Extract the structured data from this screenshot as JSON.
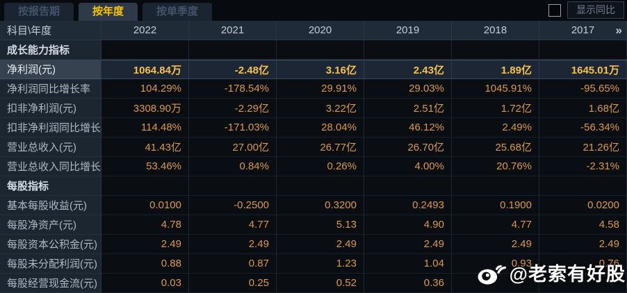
{
  "tabs": [
    {
      "label": "按报告期",
      "active": false
    },
    {
      "label": "按年度",
      "active": true
    },
    {
      "label": "按单季度",
      "active": false
    }
  ],
  "controls": {
    "show_yoy_label": "显示同比",
    "checkbox_checked": false
  },
  "table": {
    "corner_header": "科目\\年度",
    "year_columns": [
      "2022",
      "2021",
      "2020",
      "2019",
      "2018",
      "2017"
    ],
    "more_icon": "»",
    "rows": [
      {
        "type": "section",
        "label": "成长能力指标",
        "values": [
          "",
          "",
          "",
          "",
          "",
          ""
        ]
      },
      {
        "type": "data",
        "highlight": true,
        "label": "净利润(元)",
        "values": [
          "1064.84万",
          "-2.48亿",
          "3.16亿",
          "2.43亿",
          "1.89亿",
          "1645.01万"
        ]
      },
      {
        "type": "data",
        "label": "净利润同比增长率",
        "values": [
          "104.29%",
          "-178.54%",
          "29.91%",
          "29.03%",
          "1045.91%",
          "-95.65%"
        ]
      },
      {
        "type": "data",
        "label": "扣非净利润(元)",
        "values": [
          "3308.90万",
          "-2.29亿",
          "3.22亿",
          "2.51亿",
          "1.72亿",
          "1.68亿"
        ]
      },
      {
        "type": "data",
        "label": "扣非净利润同比增长率",
        "values": [
          "114.48%",
          "-171.03%",
          "28.04%",
          "46.12%",
          "2.49%",
          "-56.34%"
        ]
      },
      {
        "type": "data",
        "label": "营业总收入(元)",
        "values": [
          "41.43亿",
          "27.00亿",
          "26.77亿",
          "26.70亿",
          "25.68亿",
          "21.26亿"
        ]
      },
      {
        "type": "data",
        "label": "营业总收入同比增长率",
        "values": [
          "53.46%",
          "0.84%",
          "0.26%",
          "4.00%",
          "20.76%",
          "-2.31%"
        ]
      },
      {
        "type": "section",
        "label": "每股指标",
        "values": [
          "",
          "",
          "",
          "",
          "",
          ""
        ]
      },
      {
        "type": "data",
        "label": "基本每股收益(元)",
        "values": [
          "0.0100",
          "-0.2500",
          "0.3200",
          "0.2493",
          "0.1900",
          "0.0200"
        ]
      },
      {
        "type": "data",
        "label": "每股净资产(元)",
        "values": [
          "4.78",
          "4.77",
          "5.13",
          "4.90",
          "4.77",
          "4.58"
        ]
      },
      {
        "type": "data",
        "label": "每股资本公积金(元)",
        "values": [
          "2.49",
          "2.49",
          "2.49",
          "2.49",
          "2.49",
          "2.49"
        ]
      },
      {
        "type": "data",
        "label": "每股未分配利润(元)",
        "values": [
          "0.88",
          "0.87",
          "1.23",
          "1.04",
          "0.93",
          "0.76"
        ]
      },
      {
        "type": "data",
        "label": "每股经营现金流(元)",
        "values": [
          "0.03",
          "0.25",
          "0.52",
          "0.36",
          "",
          ""
        ]
      }
    ]
  },
  "watermark": {
    "icon": "weibo-logo",
    "text": "@老索有好股"
  },
  "colors": {
    "accent_yellow": "#ffc400",
    "value_orange": "#dd9a44",
    "highlight_value": "#f7c24e",
    "header_bg": "#202b38",
    "label_bg": "#1c2631",
    "value_bg": "#0a0d11",
    "highlight_bg": "#1c2634"
  }
}
